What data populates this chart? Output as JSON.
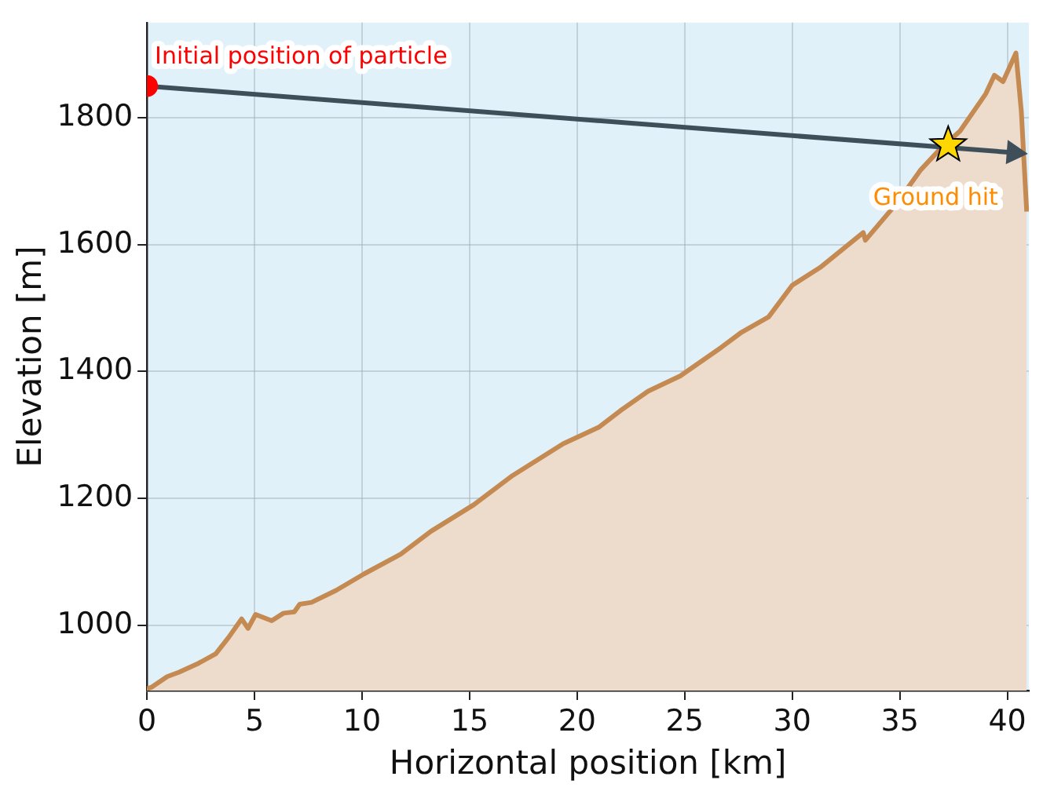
{
  "chart_data": {
    "type": "area",
    "xlabel": "Horizontal position [km]",
    "ylabel": "Elevation [m]",
    "xlim": [
      0,
      41
    ],
    "ylim": [
      897,
      1950
    ],
    "xticks": [
      0,
      5,
      10,
      15,
      20,
      25,
      30,
      35,
      40
    ],
    "yticks": [
      1000,
      1200,
      1400,
      1600,
      1800
    ],
    "grid": true,
    "series": [
      {
        "color": "#c48a52",
        "x": [
          0,
          0.2,
          0.94,
          1.5,
          2.4,
          3.2,
          3.8,
          4.4,
          4.7,
          5.05,
          5.8,
          6.35,
          6.85,
          7.1,
          7.65,
          8.8,
          10.1,
          11.8,
          13.2,
          15.2,
          17.0,
          19.35,
          21.0,
          22.0,
          23.3,
          24.8,
          26.7,
          27.65,
          28.9,
          30.0,
          31.3,
          33.3,
          33.4,
          34.9,
          35.95,
          36.8,
          37.8,
          39.0,
          39.4,
          39.8,
          40.4,
          40.65,
          40.9
        ],
        "values": [
          900,
          902,
          919,
          926,
          940,
          955,
          981,
          1010,
          995,
          1017,
          1007,
          1019,
          1021,
          1033,
          1036,
          1055,
          1081,
          1112,
          1148,
          1190,
          1236,
          1286,
          1312,
          1338,
          1369,
          1393,
          1438,
          1462,
          1486,
          1536,
          1564,
          1619,
          1607,
          1667,
          1717,
          1748,
          1779,
          1838,
          1867,
          1857,
          1902,
          1810,
          1652
        ]
      },
      {
        "type": "line",
        "color": "#3f4f5a",
        "x": [
          0,
          40.3
        ],
        "values": [
          1850,
          1745
        ]
      },
      {
        "type": "scatter",
        "color": "#ff0000",
        "marker": "circle",
        "x": [
          0
        ],
        "values": [
          1850
        ]
      },
      {
        "type": "scatter",
        "color": "#ffd700",
        "marker": "star",
        "x": [
          37.25
        ],
        "values": [
          1757
        ]
      }
    ],
    "annotations": [
      {
        "text": "Initial position of particle",
        "x": 0,
        "y": 1850
      },
      {
        "text": "Ground hit",
        "x": 37.25,
        "y": 1757
      }
    ]
  }
}
